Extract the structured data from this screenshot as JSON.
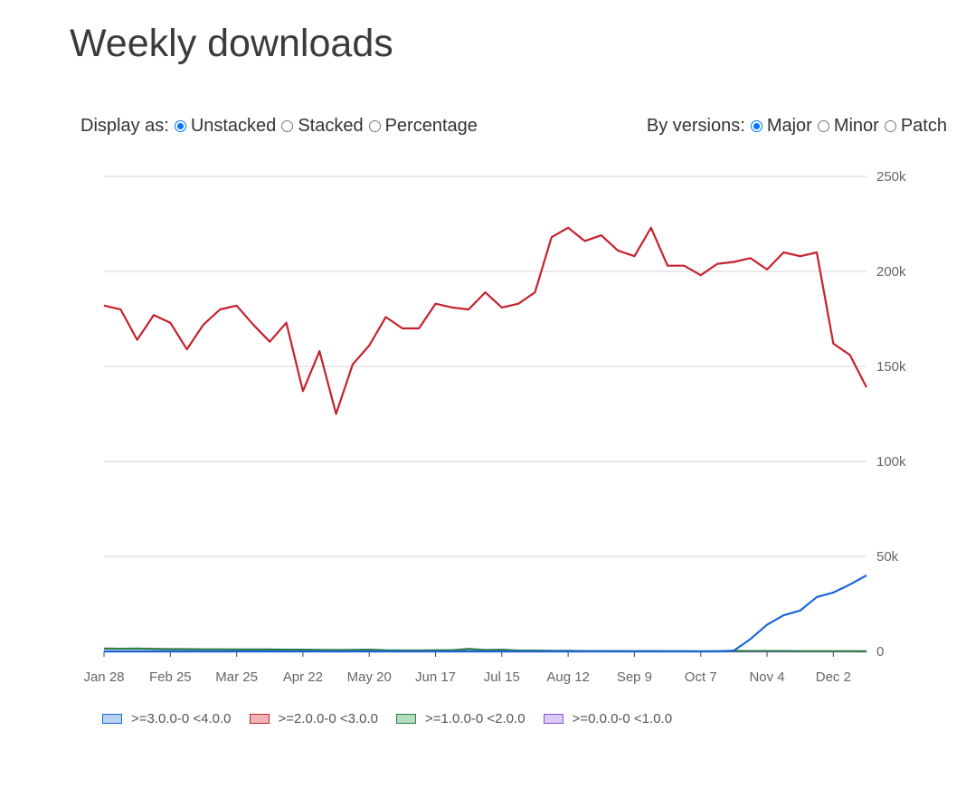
{
  "title": "Weekly downloads",
  "display": {
    "label": "Display as:",
    "options": [
      {
        "label": "Unstacked",
        "checked": true
      },
      {
        "label": "Stacked",
        "checked": false
      },
      {
        "label": "Percentage",
        "checked": false
      }
    ]
  },
  "versions": {
    "label": "By versions:",
    "options": [
      {
        "label": "Major",
        "checked": true
      },
      {
        "label": "Minor",
        "checked": false
      },
      {
        "label": "Patch",
        "checked": false
      }
    ]
  },
  "chart_data": {
    "type": "line",
    "title": "",
    "xlabel": "",
    "ylabel": "",
    "ylim": [
      0,
      250000
    ],
    "y_ticks": [
      0,
      50000,
      100000,
      150000,
      200000,
      250000
    ],
    "y_tick_labels": [
      "0",
      "50k",
      "100k",
      "150k",
      "200k",
      "250k"
    ],
    "x_tick_labels": [
      "Jan 28",
      "Feb 25",
      "Mar 25",
      "Apr 22",
      "May 20",
      "Jun 17",
      "Jul 15",
      "Aug 12",
      "Sep 9",
      "Oct 7",
      "Nov 4",
      "Dec 2"
    ],
    "x_tick_every": 4,
    "grid": true,
    "legend_position": "bottom",
    "series": [
      {
        "name": ">=3.0.0-0 <4.0.0",
        "color": "#1967d2",
        "fill": "#b8d3f2",
        "values": [
          0,
          0,
          0,
          0,
          0,
          0,
          0,
          0,
          0,
          0,
          0,
          0,
          0,
          0,
          0,
          0,
          0,
          0,
          0,
          0,
          0,
          0,
          0,
          0,
          0,
          0,
          0,
          0,
          0,
          0,
          0,
          0,
          0,
          0,
          0,
          0,
          0,
          0,
          400,
          6500,
          14000,
          19000,
          21500,
          28600,
          31000,
          35200,
          40000
        ]
      },
      {
        "name": ">=2.0.0-0 <3.0.0",
        "color": "#c5222d",
        "fill": "#f0b3b7",
        "values": [
          182000,
          180000,
          164000,
          177000,
          173000,
          159000,
          172000,
          180000,
          182000,
          172000,
          163000,
          173000,
          137000,
          158000,
          125000,
          151000,
          161000,
          176000,
          170000,
          170000,
          183000,
          181000,
          180000,
          189000,
          181000,
          183000,
          189000,
          218000,
          223000,
          216000,
          219000,
          211000,
          208000,
          223000,
          203000,
          203000,
          198000,
          204000,
          205000,
          207000,
          201000,
          210000,
          208000,
          210000,
          162000,
          156000,
          139000
        ]
      },
      {
        "name": ">=1.0.0-0 <2.0.0",
        "color": "#2e7d46",
        "fill": "#b3dcc0",
        "values": [
          1500,
          1400,
          1500,
          1300,
          1200,
          1200,
          1100,
          1100,
          1000,
          1000,
          1000,
          900,
          900,
          800,
          700,
          800,
          900,
          600,
          500,
          500,
          600,
          600,
          1300,
          700,
          900,
          400,
          400,
          300,
          300,
          200,
          200,
          200,
          100,
          200,
          100,
          100,
          0,
          100,
          200,
          200,
          200,
          200,
          100,
          100,
          100,
          100,
          0
        ]
      },
      {
        "name": ">=0.0.0-0 <1.0.0",
        "color": "#8a4fd8",
        "fill": "#dccbf7",
        "values": [
          0,
          0,
          0,
          0,
          0,
          0,
          0,
          0,
          0,
          0,
          0,
          0,
          0,
          0,
          0,
          0,
          0,
          0,
          0,
          0,
          0,
          0,
          0,
          0,
          0,
          0,
          0,
          0,
          0,
          0,
          0,
          0,
          0,
          0,
          0,
          0,
          0,
          0,
          0,
          0,
          0,
          0,
          0,
          0,
          0,
          0,
          0
        ]
      }
    ]
  }
}
